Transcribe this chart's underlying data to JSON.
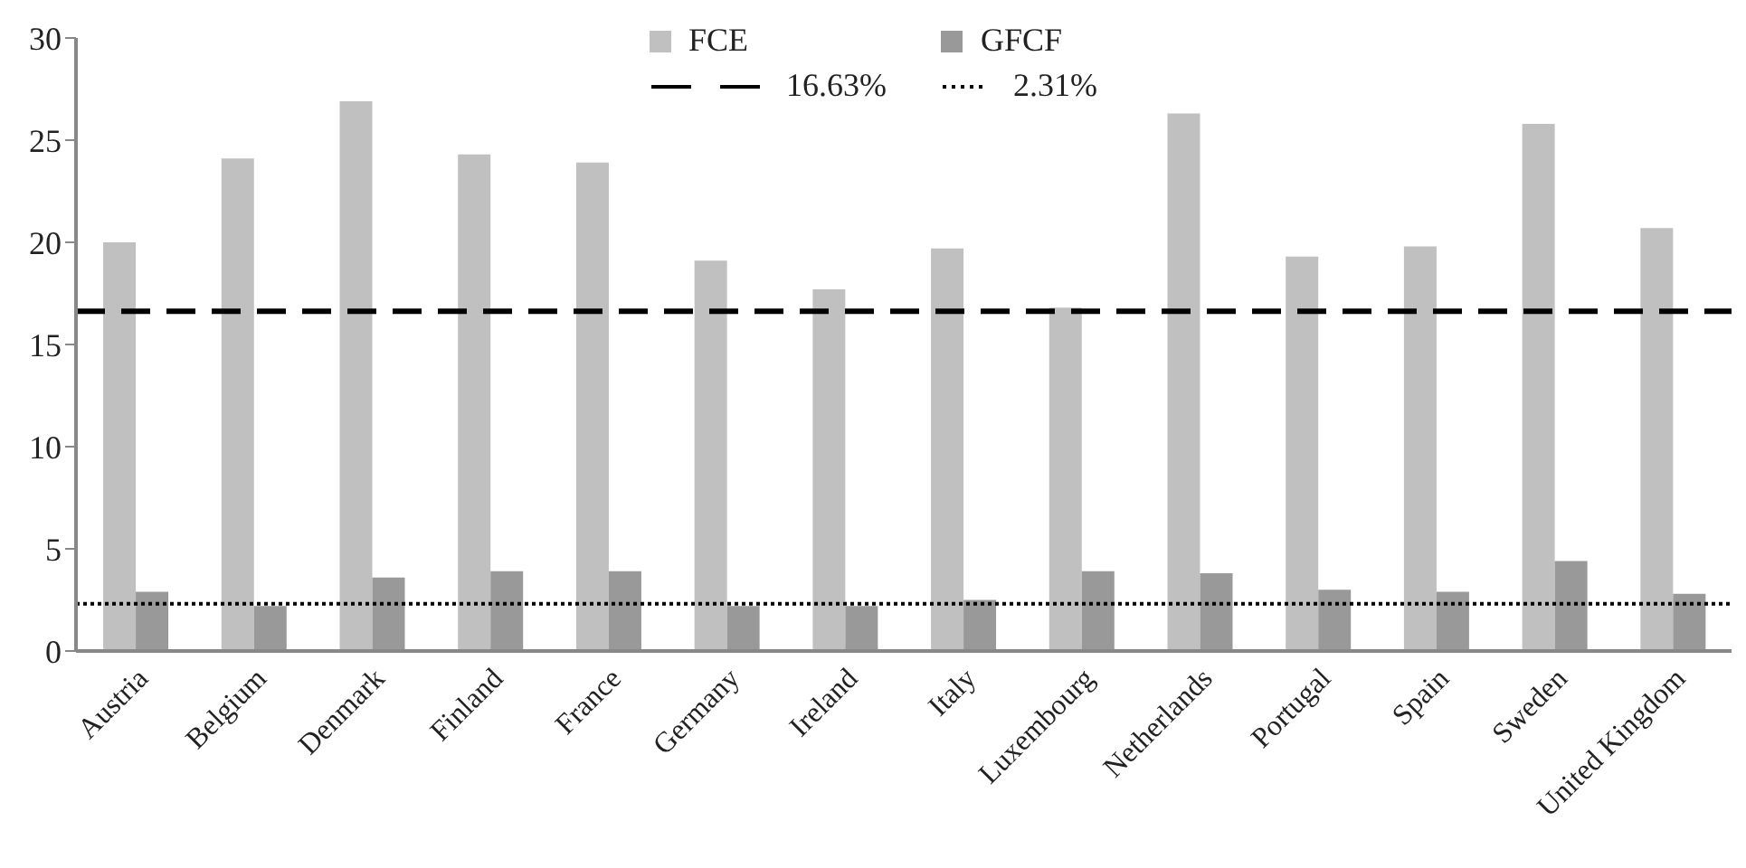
{
  "chart_data": {
    "type": "bar",
    "categories": [
      "Austria",
      "Belgium",
      "Denmark",
      "Finland",
      "France",
      "Germany",
      "Ireland",
      "Italy",
      "Luxembourg",
      "Netherlands",
      "Portugal",
      "Spain",
      "Sweden",
      "United Kingdom"
    ],
    "series": [
      {
        "name": "FCE",
        "color": "#c0c0c0",
        "values": [
          20.0,
          24.1,
          26.9,
          24.3,
          23.9,
          19.1,
          17.7,
          19.7,
          16.8,
          26.3,
          19.3,
          19.8,
          25.8,
          20.7
        ]
      },
      {
        "name": "GFCF",
        "color": "#999999",
        "values": [
          2.9,
          2.2,
          3.6,
          3.9,
          3.9,
          2.2,
          2.2,
          2.5,
          3.9,
          3.8,
          3.0,
          2.9,
          4.4,
          2.8
        ]
      }
    ],
    "ref_lines": [
      {
        "axis": "y",
        "value": 16.63,
        "label": "16.63%",
        "color": "#000000",
        "line_style": "dashed"
      },
      {
        "axis": "y",
        "value": 2.31,
        "label": "2.31%",
        "color": "#000000",
        "line_style": "dotted"
      }
    ],
    "ylim": [
      0,
      30
    ],
    "yticks": [
      0,
      5,
      10,
      15,
      20,
      25,
      30
    ],
    "legend": "top"
  }
}
